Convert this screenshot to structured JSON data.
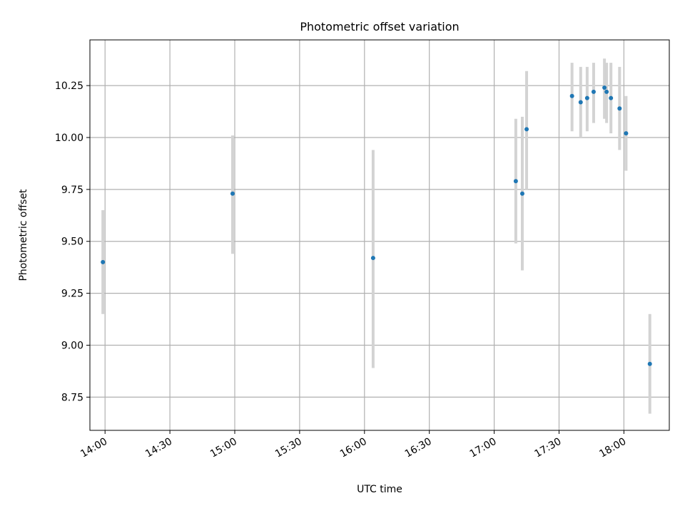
{
  "chart_data": {
    "type": "scatter",
    "title": "Photometric offset variation",
    "xlabel": "UTC time",
    "ylabel": "Photometric offset",
    "x_range": [
      "13:53",
      "18:21"
    ],
    "ylim": [
      8.59,
      10.47
    ],
    "x_ticks": [
      "14:00",
      "14:30",
      "15:00",
      "15:30",
      "16:00",
      "16:30",
      "17:00",
      "17:30",
      "18:00"
    ],
    "y_ticks": [
      "8.75",
      "9.00",
      "9.25",
      "9.50",
      "9.75",
      "10.00",
      "10.25"
    ],
    "grid": true,
    "colors": {
      "point": "#1f77b4",
      "errorbar": "#d3d3d3",
      "grid": "#b0b0b0",
      "axes": "#000000"
    },
    "series": [
      {
        "points": [
          {
            "x": "13:59",
            "y": 9.4,
            "err_low": 9.15,
            "err_high": 9.65
          },
          {
            "x": "14:59",
            "y": 9.73,
            "err_low": 9.44,
            "err_high": 10.01
          },
          {
            "x": "16:04",
            "y": 9.42,
            "err_low": 8.89,
            "err_high": 9.94
          },
          {
            "x": "17:10",
            "y": 9.79,
            "err_low": 9.49,
            "err_high": 10.09
          },
          {
            "x": "17:13",
            "y": 9.73,
            "err_low": 9.36,
            "err_high": 10.1
          },
          {
            "x": "17:15",
            "y": 10.04,
            "err_low": 9.75,
            "err_high": 10.32
          },
          {
            "x": "17:36",
            "y": 10.2,
            "err_low": 10.03,
            "err_high": 10.36
          },
          {
            "x": "17:40",
            "y": 10.17,
            "err_low": 10.0,
            "err_high": 10.34
          },
          {
            "x": "17:43",
            "y": 10.19,
            "err_low": 10.03,
            "err_high": 10.34
          },
          {
            "x": "17:46",
            "y": 10.22,
            "err_low": 10.07,
            "err_high": 10.36
          },
          {
            "x": "17:51",
            "y": 10.24,
            "err_low": 10.09,
            "err_high": 10.38
          },
          {
            "x": "17:52",
            "y": 10.22,
            "err_low": 10.07,
            "err_high": 10.36
          },
          {
            "x": "17:54",
            "y": 10.19,
            "err_low": 10.02,
            "err_high": 10.36
          },
          {
            "x": "17:58",
            "y": 10.14,
            "err_low": 9.94,
            "err_high": 10.34
          },
          {
            "x": "18:01",
            "y": 10.02,
            "err_low": 9.84,
            "err_high": 10.2
          },
          {
            "x": "18:12",
            "y": 8.91,
            "err_low": 8.67,
            "err_high": 9.15
          }
        ]
      }
    ]
  }
}
